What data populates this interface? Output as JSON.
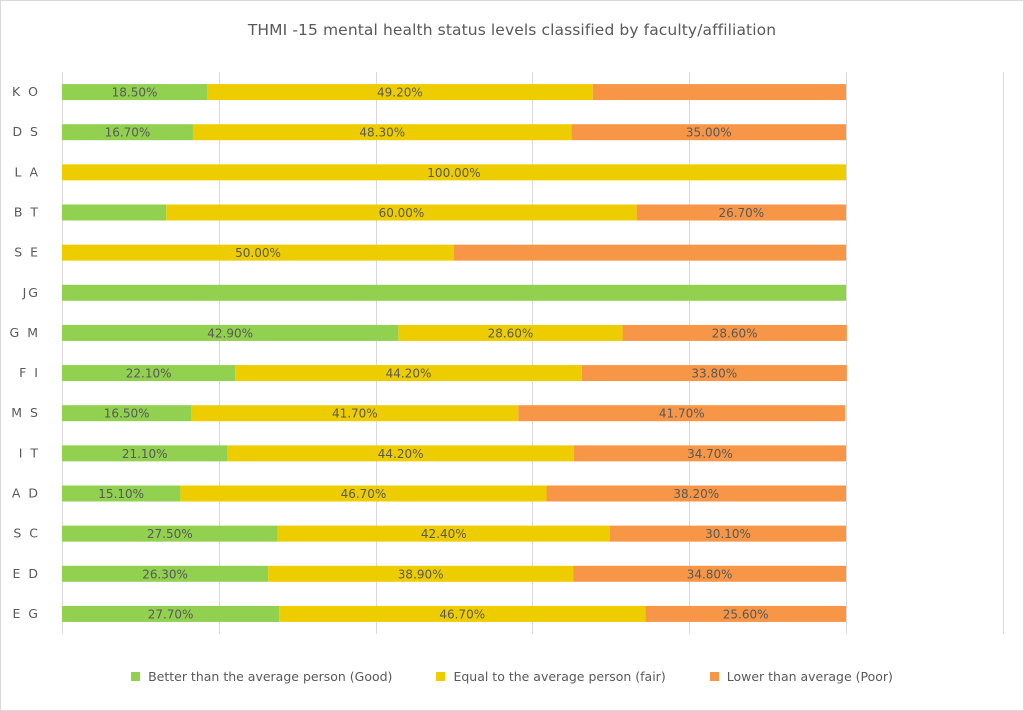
{
  "chart_data": {
    "type": "bar",
    "orientation": "horizontal",
    "stacked": true,
    "title": "THMI -15 mental health status levels classified by faculty/affiliation",
    "xlabel": "",
    "ylabel": "",
    "xlim": [
      0,
      1.2
    ],
    "grid": true,
    "legend_position": "bottom",
    "categories": [
      "K O",
      "D S",
      "L A",
      "B T",
      "S E",
      "JG",
      "G M",
      "F I",
      "M S",
      "I T",
      "A D",
      "S C",
      "E D",
      "E G"
    ],
    "series": [
      {
        "name": "Better than the average person (Good)",
        "color": "#92d050",
        "values": [
          0.185,
          0.167,
          0.0,
          0.133,
          0.0,
          1.0,
          0.429,
          0.221,
          0.165,
          0.211,
          0.151,
          0.275,
          0.263,
          0.277
        ],
        "labels": [
          "18.50%",
          "16.70%",
          "",
          "",
          "",
          "",
          "42.90%",
          "22.10%",
          "16.50%",
          "21.10%",
          "15.10%",
          "27.50%",
          "26.30%",
          "27.70%"
        ]
      },
      {
        "name": "Equal to the average person (fair)",
        "color": "#eecd00",
        "values": [
          0.492,
          0.483,
          1.0,
          0.6,
          0.5,
          0.0,
          0.286,
          0.442,
          0.417,
          0.442,
          0.467,
          0.424,
          0.389,
          0.467
        ],
        "labels": [
          "49.20%",
          "48.30%",
          "100.00%",
          "60.00%",
          "50.00%",
          "",
          "28.60%",
          "44.20%",
          "41.70%",
          "44.20%",
          "46.70%",
          "42.40%",
          "38.90%",
          "46.70%"
        ]
      },
      {
        "name": "Lower than average (Poor)",
        "color": "#f79646",
        "values": [
          0.323,
          0.35,
          0.0,
          0.267,
          0.5,
          0.0,
          0.286,
          0.338,
          0.417,
          0.347,
          0.382,
          0.301,
          0.348,
          0.256
        ],
        "labels": [
          "",
          "35.00%",
          "",
          "26.70%",
          "",
          "",
          "28.60%",
          "33.80%",
          "41.70%",
          "34.70%",
          "38.20%",
          "30.10%",
          "34.80%",
          "25.60%"
        ]
      }
    ]
  }
}
